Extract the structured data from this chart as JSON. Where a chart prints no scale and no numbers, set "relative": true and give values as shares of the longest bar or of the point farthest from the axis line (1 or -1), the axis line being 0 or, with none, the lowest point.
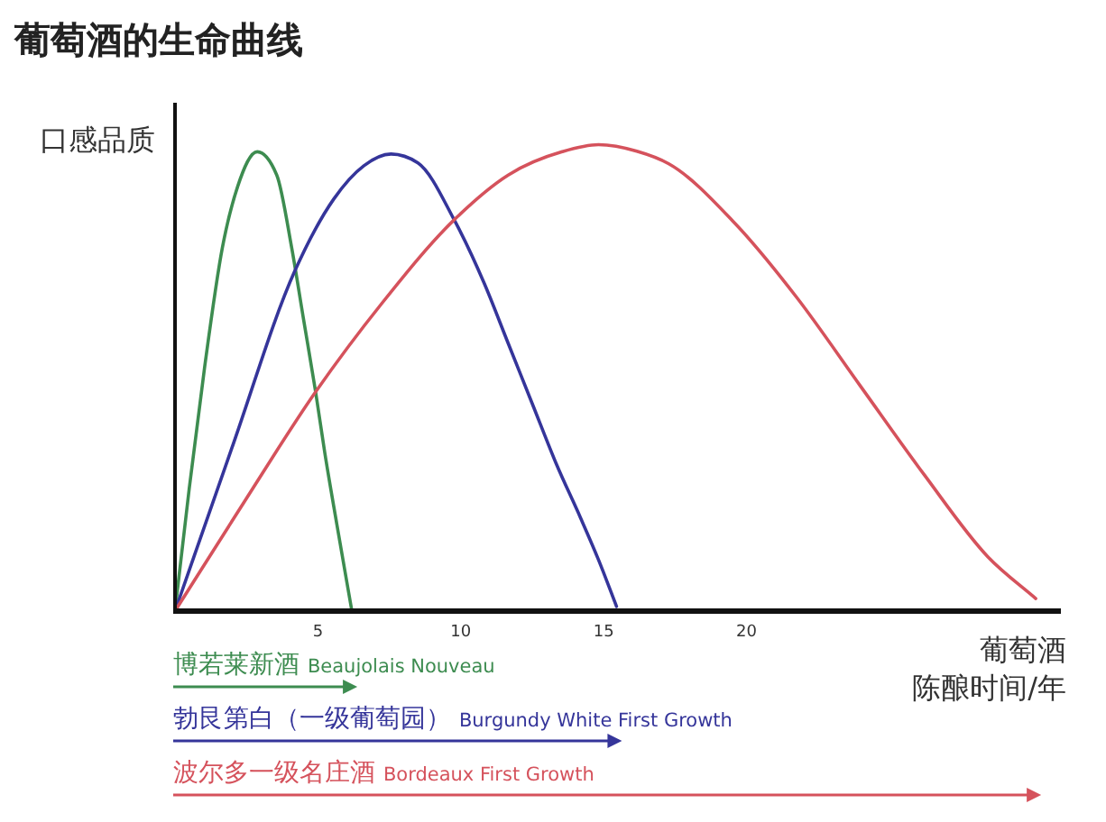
{
  "chart_data": {
    "type": "line",
    "title": "葡萄酒的生命曲线",
    "ylabel": "口感品质",
    "xlabel": "葡萄酒陈酿时间/年",
    "relative": true,
    "xlim": [
      0,
      31
    ],
    "xticks": [
      5,
      10,
      15,
      20
    ],
    "legend": "bottom",
    "series": [
      {
        "name": "博若莱新酒 Beaujolais Nouveau",
        "color": "#3d8c50",
        "x": [
          0,
          0.5,
          1.03,
          1.66,
          2.19,
          2.88,
          3.56,
          4.08,
          4.5,
          4.92,
          5.24,
          5.66,
          6.19
        ],
        "values": [
          0,
          0.264,
          0.52,
          0.78,
          0.91,
          0.985,
          0.935,
          0.78,
          0.625,
          0.47,
          0.34,
          0.187,
          0
        ]
      },
      {
        "name": "勃艮第白（一级葡萄园） Burgundy White First Growth",
        "color": "#35359a",
        "x": [
          0,
          1.98,
          4.19,
          5.56,
          6.61,
          7.56,
          8.5,
          9.77,
          10.82,
          11.66,
          12.5,
          13.34,
          14.19,
          14.82,
          15.45
        ],
        "values": [
          0,
          0.348,
          0.729,
          0.884,
          0.955,
          0.98,
          0.961,
          0.839,
          0.703,
          0.574,
          0.445,
          0.316,
          0.2,
          0.11,
          0.01
        ]
      },
      {
        "name": "波尔多一级名庄酒 Bordeaux First Growth",
        "color": "#d5525c",
        "x": [
          0,
          2.4,
          4.92,
          7.24,
          9.77,
          11.66,
          13.55,
          14.82,
          16.16,
          17.28,
          19.51,
          21.75,
          23.98,
          26.21,
          28.45,
          30.12
        ],
        "values": [
          0,
          0.232,
          0.47,
          0.66,
          0.839,
          0.935,
          0.985,
          1,
          0.986,
          0.959,
          0.837,
          0.673,
          0.483,
          0.293,
          0.116,
          0.027
        ]
      }
    ]
  }
}
